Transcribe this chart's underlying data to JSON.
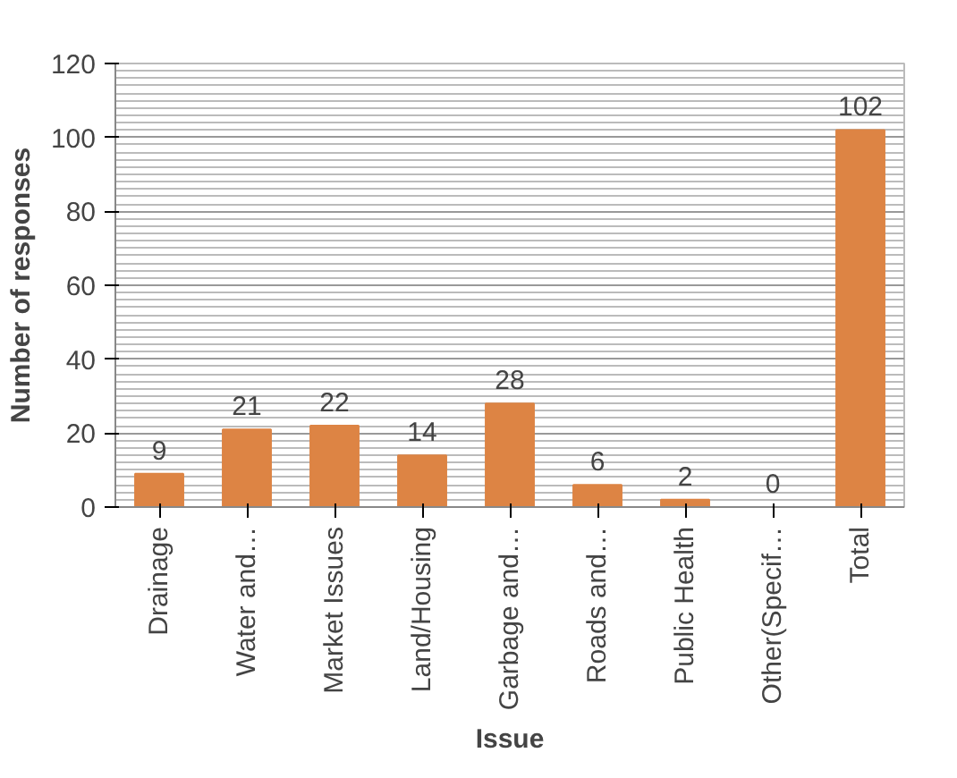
{
  "chart_data": {
    "type": "bar",
    "xlabel": "Issue",
    "ylabel": "Number of responses",
    "categories": [
      "Drainage",
      "Water and…",
      "Market Issues",
      "Land/Housing",
      "Garbage and…",
      "Roads and…",
      "Public Health",
      "Other(Specif…",
      "Total"
    ],
    "values": [
      9,
      21,
      22,
      14,
      28,
      6,
      2,
      0,
      102
    ],
    "color": "#dd8444",
    "ylim": [
      0,
      120
    ],
    "yticks": [
      0,
      20,
      40,
      60,
      80,
      100,
      120
    ],
    "grid": "y",
    "data_labels": true
  }
}
